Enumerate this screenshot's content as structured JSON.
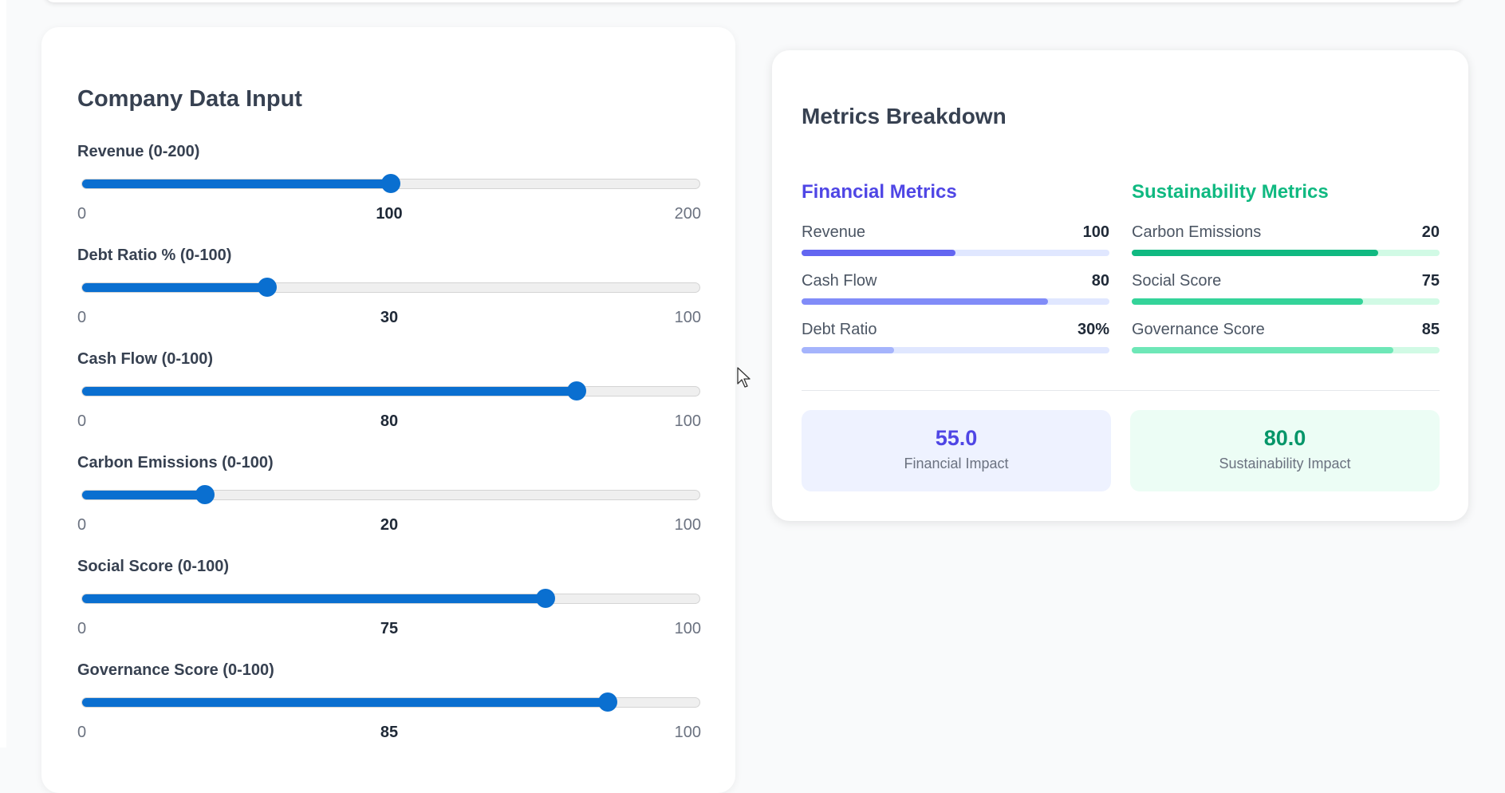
{
  "input_panel": {
    "title": "Company Data Input",
    "sliders": [
      {
        "label": "Revenue (0-200)",
        "min": "0",
        "max": "200",
        "value": "100",
        "fraction": 0.5
      },
      {
        "label": "Debt Ratio % (0-100)",
        "min": "0",
        "max": "100",
        "value": "30",
        "fraction": 0.3
      },
      {
        "label": "Cash Flow (0-100)",
        "min": "0",
        "max": "100",
        "value": "80",
        "fraction": 0.8
      },
      {
        "label": "Carbon Emissions (0-100)",
        "min": "0",
        "max": "100",
        "value": "20",
        "fraction": 0.2
      },
      {
        "label": "Social Score (0-100)",
        "min": "0",
        "max": "100",
        "value": "75",
        "fraction": 0.75
      },
      {
        "label": "Governance Score (0-100)",
        "min": "0",
        "max": "100",
        "value": "85",
        "fraction": 0.85
      }
    ]
  },
  "metrics_panel": {
    "title": "Metrics Breakdown",
    "financial": {
      "title": "Financial Metrics",
      "items": [
        {
          "name": "Revenue",
          "value": "100",
          "fraction": 0.5
        },
        {
          "name": "Cash Flow",
          "value": "80",
          "fraction": 0.8
        },
        {
          "name": "Debt Ratio",
          "value": "30%",
          "fraction": 0.3
        }
      ]
    },
    "sustainability": {
      "title": "Sustainability Metrics",
      "items": [
        {
          "name": "Carbon Emissions",
          "value": "20",
          "fraction": 0.8
        },
        {
          "name": "Social Score",
          "value": "75",
          "fraction": 0.75
        },
        {
          "name": "Governance Score",
          "value": "85",
          "fraction": 0.85
        }
      ]
    },
    "impacts": {
      "financial": {
        "value": "55.0",
        "label": "Financial Impact"
      },
      "sustainability": {
        "value": "80.0",
        "label": "Sustainability Impact"
      }
    }
  },
  "colors": {
    "slider_accent": "#0a6fd0",
    "financial_bars": [
      "#6366f1",
      "#818cf8",
      "#a5b4fc"
    ],
    "financial_track": "#e0e7ff",
    "sustainability_bars": [
      "#10b981",
      "#34d399",
      "#6ee7b7"
    ],
    "sustainability_track": "#d1fae5"
  }
}
